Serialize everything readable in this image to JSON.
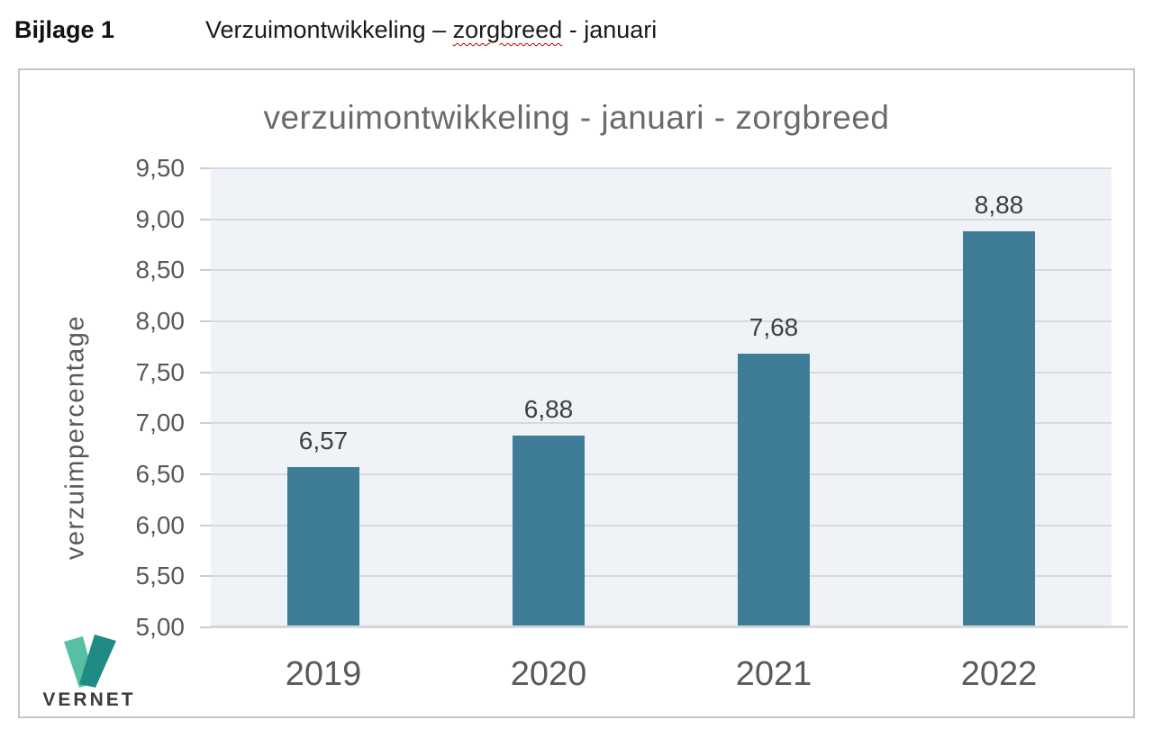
{
  "header": {
    "label": "Bijlage 1",
    "title_prefix": "Verzuimontwikkeling – ",
    "title_misspelled": "zorgbreed",
    "title_suffix": " - januari",
    "squiggle_color": "#c00000"
  },
  "chart_data": {
    "type": "bar",
    "title": "verzuimontwikkeling - januari - zorgbreed",
    "ylabel": "verzuimpercentage",
    "xlabel": "",
    "categories": [
      "2019",
      "2020",
      "2021",
      "2022"
    ],
    "values": [
      6.57,
      6.88,
      7.68,
      8.88
    ],
    "value_labels": [
      "6,57",
      "6,88",
      "7,68",
      "8,88"
    ],
    "ylim": [
      5.0,
      9.5
    ],
    "ytick_step": 0.5,
    "ytick_labels": [
      "5,00",
      "5,50",
      "6,00",
      "6,50",
      "7,00",
      "7,50",
      "8,00",
      "8,50",
      "9,00",
      "9,50"
    ],
    "grid": true,
    "legend": "none",
    "bar_color": "#3E7C98",
    "plot_bg": "#EFF3F7",
    "gridline_color": "#D7DBDF",
    "axis_line_color": "#D2D7DA",
    "label_color": "#595959",
    "value_label_color": "#3F3F3F",
    "title_color": "#6A6A6A"
  },
  "logo": {
    "text": "VERNET",
    "text_color": "#3B3B3B",
    "v_light_color": "#57BFA3",
    "v_dark_color": "#1F8B84"
  }
}
